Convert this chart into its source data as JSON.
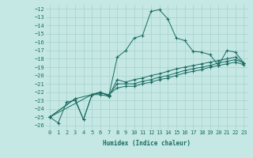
{
  "xlabel": "Humidex (Indice chaleur)",
  "bg_color": "#c5e8e5",
  "grid_color": "#aad4d0",
  "line_color": "#1a6b60",
  "xlim": [
    -0.5,
    23.5
  ],
  "ylim": [
    -26.5,
    -11.5
  ],
  "yticks": [
    -12,
    -13,
    -14,
    -15,
    -16,
    -17,
    -18,
    -19,
    -20,
    -21,
    -22,
    -23,
    -24,
    -25,
    -26
  ],
  "xticks": [
    0,
    1,
    2,
    3,
    4,
    5,
    6,
    7,
    8,
    9,
    10,
    11,
    12,
    13,
    14,
    15,
    16,
    17,
    18,
    19,
    20,
    21,
    22,
    23
  ],
  "lines": [
    {
      "x": [
        0,
        1,
        2,
        3,
        4,
        5,
        6,
        7,
        8,
        9,
        10,
        11,
        12,
        13,
        14,
        15,
        16,
        17,
        18,
        19,
        20,
        21,
        22,
        23
      ],
      "y": [
        -25.0,
        -25.7,
        -23.2,
        -23.0,
        -25.3,
        -22.3,
        -22.0,
        -22.5,
        -17.8,
        -17.0,
        -15.5,
        -15.2,
        -12.3,
        -12.1,
        -13.2,
        -15.5,
        -15.8,
        -17.1,
        -17.2,
        -17.5,
        -18.8,
        -17.0,
        -17.2,
        -18.5
      ]
    },
    {
      "x": [
        0,
        3,
        4,
        5,
        6,
        7,
        8,
        9,
        10,
        11,
        12,
        13,
        14,
        15,
        16,
        17,
        18,
        19,
        20,
        21,
        22,
        23
      ],
      "y": [
        -25.0,
        -22.8,
        -25.3,
        -22.3,
        -22.3,
        -22.5,
        -20.5,
        -20.8,
        -20.5,
        -20.3,
        -20.0,
        -19.8,
        -19.5,
        -19.2,
        -19.0,
        -18.8,
        -18.6,
        -18.4,
        -18.2,
        -18.0,
        -17.8,
        -18.5
      ]
    },
    {
      "x": [
        0,
        3,
        5,
        6,
        7,
        8,
        9,
        10,
        11,
        12,
        13,
        14,
        15,
        16,
        17,
        18,
        19,
        20,
        21,
        22,
        23
      ],
      "y": [
        -25.0,
        -22.8,
        -22.3,
        -22.0,
        -22.4,
        -21.0,
        -21.0,
        -21.0,
        -20.7,
        -20.5,
        -20.2,
        -20.0,
        -19.7,
        -19.4,
        -19.2,
        -19.0,
        -18.8,
        -18.5,
        -18.3,
        -18.1,
        -18.5
      ]
    },
    {
      "x": [
        0,
        5,
        6,
        7,
        8,
        9,
        10,
        11,
        12,
        13,
        14,
        15,
        16,
        17,
        18,
        19,
        20,
        21,
        22,
        23
      ],
      "y": [
        -25.0,
        -22.3,
        -22.1,
        -22.3,
        -21.5,
        -21.3,
        -21.3,
        -21.0,
        -20.8,
        -20.5,
        -20.3,
        -20.0,
        -19.7,
        -19.5,
        -19.3,
        -19.0,
        -18.8,
        -18.6,
        -18.4,
        -18.7
      ]
    }
  ]
}
